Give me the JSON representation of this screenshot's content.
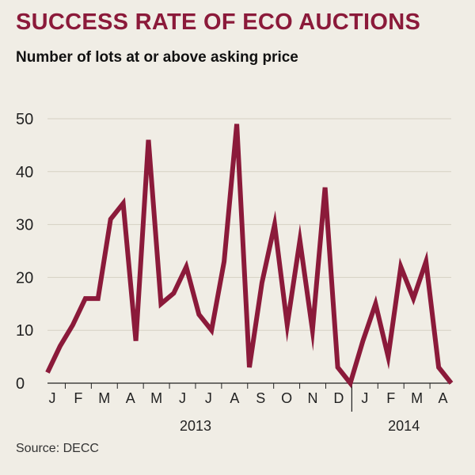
{
  "chart_data": {
    "type": "line",
    "title": "SUCCESS RATE OF ECO AUCTIONS",
    "subtitle": "Number of lots at or above asking price",
    "source": "Source: DECC",
    "ylim": [
      0,
      50
    ],
    "yticks": [
      0,
      10,
      20,
      30,
      40,
      50
    ],
    "month_labels": [
      "J",
      "F",
      "M",
      "A",
      "M",
      "J",
      "J",
      "A",
      "S",
      "O",
      "N",
      "D",
      "J",
      "F",
      "M",
      "A"
    ],
    "year_labels": [
      "2013",
      "2014"
    ],
    "series": [
      {
        "name": "Lots at or above asking price",
        "color": "#8b1a3a",
        "values": [
          2,
          7,
          11,
          16,
          16,
          31,
          34,
          8,
          46,
          15,
          17,
          22,
          13,
          10,
          23,
          49,
          3,
          19,
          30,
          11,
          27,
          10,
          37,
          3,
          0,
          8,
          15,
          5,
          22,
          16,
          23,
          3,
          0
        ]
      }
    ]
  }
}
